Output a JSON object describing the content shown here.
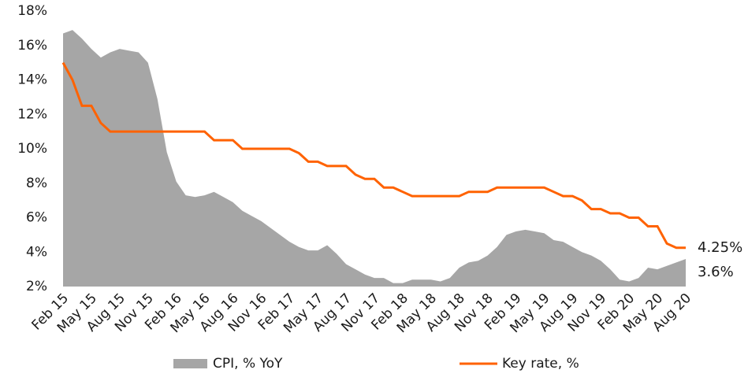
{
  "chart_data": {
    "type": "line",
    "categories": [
      "Feb 15",
      null,
      null,
      "May 15",
      null,
      null,
      "Aug 15",
      null,
      null,
      "Nov 15",
      null,
      null,
      "Feb 16",
      null,
      null,
      "May 16",
      null,
      null,
      "Aug 16",
      null,
      null,
      "Nov 16",
      null,
      null,
      "Feb 17",
      null,
      null,
      "May 17",
      null,
      null,
      "Aug 17",
      null,
      null,
      "Nov 17",
      null,
      null,
      "Feb 18",
      null,
      null,
      "May 18",
      null,
      null,
      "Aug 18",
      null,
      null,
      "Nov 18",
      null,
      null,
      "Feb 19",
      null,
      null,
      "May 19",
      null,
      null,
      "Aug 19",
      null,
      null,
      "Nov 19",
      null,
      null,
      "Feb 20",
      null,
      null,
      "May 20",
      null,
      null,
      "Aug 20"
    ],
    "series": [
      {
        "name": "CPI, % YoY",
        "type": "area",
        "color": "#a6a6a6",
        "values": [
          16.7,
          16.9,
          16.4,
          15.8,
          15.3,
          15.6,
          15.8,
          15.7,
          15.6,
          15.0,
          12.9,
          9.8,
          8.1,
          7.3,
          7.2,
          7.3,
          7.5,
          7.2,
          6.9,
          6.4,
          6.1,
          5.8,
          5.4,
          5.0,
          4.6,
          4.3,
          4.1,
          4.1,
          4.4,
          3.9,
          3.3,
          3.0,
          2.7,
          2.5,
          2.5,
          2.2,
          2.2,
          2.4,
          2.4,
          2.4,
          2.3,
          2.5,
          3.1,
          3.4,
          3.5,
          3.8,
          4.3,
          5.0,
          5.2,
          5.3,
          5.2,
          5.1,
          4.7,
          4.6,
          4.3,
          4.0,
          3.8,
          3.5,
          3.0,
          2.4,
          2.3,
          2.5,
          3.1,
          3.0,
          3.2,
          3.4,
          3.6
        ],
        "value_labels": [
          null,
          null,
          null,
          null,
          null,
          null,
          null,
          null,
          null,
          null,
          null,
          null,
          null,
          null,
          null,
          null,
          null,
          null,
          null,
          null,
          null,
          null,
          null,
          null,
          null,
          null,
          null,
          null,
          null,
          null,
          null,
          null,
          null,
          null,
          null,
          null,
          null,
          null,
          null,
          null,
          null,
          null,
          null,
          null,
          null,
          null,
          null,
          null,
          null,
          null,
          null,
          null,
          null,
          null,
          null,
          null,
          null,
          null,
          null,
          null,
          null,
          null,
          null,
          null,
          null,
          null,
          "3.6%"
        ]
      },
      {
        "name": "Key rate, %",
        "type": "line",
        "color": "#ff6200",
        "values": [
          15,
          14,
          12.5,
          12.5,
          11.5,
          11,
          11,
          11,
          11,
          11,
          11,
          11,
          11,
          11,
          11,
          11,
          10.5,
          10.5,
          10.5,
          10,
          10,
          10,
          10,
          10,
          10,
          9.75,
          9.25,
          9.25,
          9,
          9,
          9,
          8.5,
          8.25,
          8.25,
          7.75,
          7.75,
          7.5,
          7.25,
          7.25,
          7.25,
          7.25,
          7.25,
          7.25,
          7.5,
          7.5,
          7.5,
          7.75,
          7.75,
          7.75,
          7.75,
          7.75,
          7.75,
          7.5,
          7.25,
          7.25,
          7,
          6.5,
          6.5,
          6.25,
          6.25,
          6,
          6,
          5.5,
          5.5,
          4.5,
          4.25,
          4.25
        ],
        "value_labels": [
          null,
          null,
          null,
          null,
          null,
          null,
          null,
          null,
          null,
          null,
          null,
          null,
          null,
          null,
          null,
          null,
          null,
          null,
          null,
          null,
          null,
          null,
          null,
          null,
          null,
          null,
          null,
          null,
          null,
          null,
          null,
          null,
          null,
          null,
          null,
          null,
          null,
          null,
          null,
          null,
          null,
          null,
          null,
          null,
          null,
          null,
          null,
          null,
          null,
          null,
          null,
          null,
          null,
          null,
          null,
          null,
          null,
          null,
          null,
          null,
          null,
          null,
          null,
          null,
          null,
          null,
          "4.25%"
        ]
      }
    ],
    "ylim": [
      2,
      18
    ],
    "yticks": [
      {
        "value": 2,
        "label": "2%"
      },
      {
        "value": 4,
        "label": "4%"
      },
      {
        "value": 6,
        "label": "6%"
      },
      {
        "value": 8,
        "label": "8%"
      },
      {
        "value": 10,
        "label": "10%"
      },
      {
        "value": 12,
        "label": "12%"
      },
      {
        "value": 14,
        "label": "14%"
      },
      {
        "value": 16,
        "label": "16%"
      },
      {
        "value": 18,
        "label": "18%"
      }
    ],
    "grid": false,
    "legend": "bottom"
  }
}
